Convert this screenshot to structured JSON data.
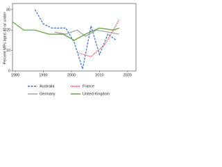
{
  "chart_data": {
    "type": "line",
    "y_label": "Percent MPs aged 40 or under",
    "xlim": [
      1979,
      2023
    ],
    "xticks": [
      1980,
      1990,
      2000,
      2010,
      2020
    ],
    "ylim": [
      0,
      33
    ],
    "yticks": [
      0,
      10,
      20,
      30
    ],
    "series": [
      {
        "name": "Australia",
        "color": "#3a6fc4",
        "style": "dashed",
        "x": [
          1987,
          1990,
          1993,
          1996,
          1998,
          2001,
          2004,
          2007,
          2010,
          2013,
          2016
        ],
        "values": [
          30,
          23,
          21,
          21,
          21,
          14,
          1,
          22,
          8,
          18,
          15
        ]
      },
      {
        "name": "France",
        "color": "#d9263a",
        "style": "dotted",
        "x": [
          2002,
          2007,
          2012,
          2017
        ],
        "values": [
          9,
          7,
          13,
          25
        ]
      },
      {
        "name": "Germany",
        "color": "#a0a0a0",
        "style": "solid",
        "x": [
          1994,
          1998,
          2002,
          2005,
          2009,
          2013,
          2017
        ],
        "values": [
          19,
          18,
          20,
          17,
          20,
          19,
          18
        ]
      },
      {
        "name": "United Kingdom",
        "color": "#5a9e3a",
        "style": "solid",
        "x": [
          1979,
          1983,
          1987,
          1992,
          1997,
          2001,
          2005,
          2010,
          2015,
          2017
        ],
        "values": [
          24,
          20,
          20,
          18,
          18,
          15,
          18,
          21,
          20,
          21
        ]
      }
    ]
  }
}
